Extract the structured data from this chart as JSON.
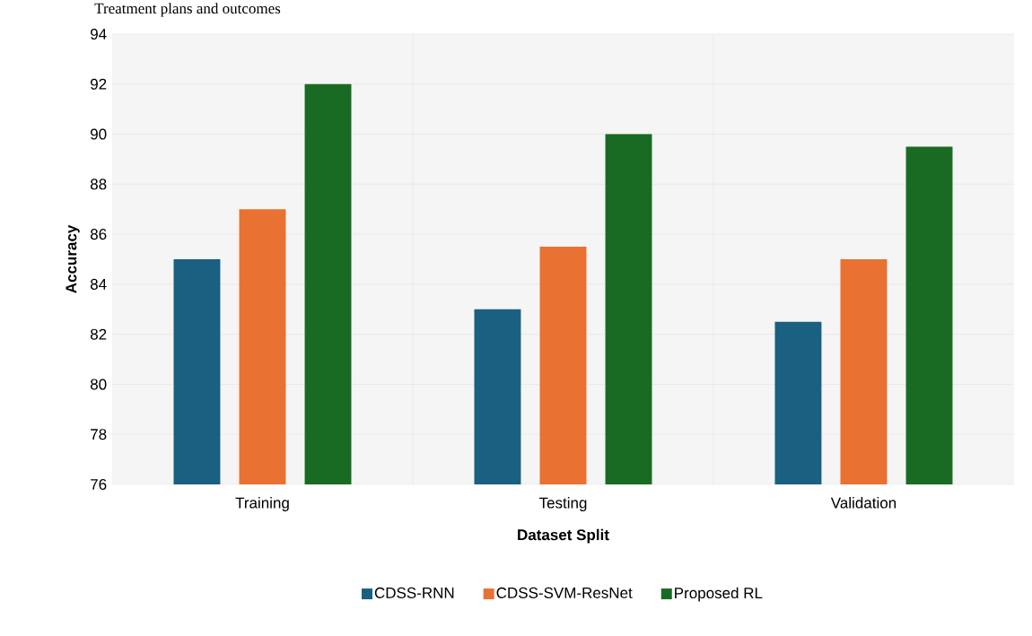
{
  "chart_data": {
    "type": "bar",
    "xlabel": "Dataset Split",
    "ylabel": "Accuracy",
    "annotations": [
      "Treatment plans and outcomes"
    ],
    "categories": [
      "Training",
      "Testing",
      "Validation"
    ],
    "series": [
      {
        "name": "CDSS-RNN",
        "color": "#1a6080",
        "values": [
          85,
          83,
          82.5
        ]
      },
      {
        "name": "CDSS-SVM-ResNet",
        "color": "#e97132",
        "values": [
          87,
          85.5,
          85
        ]
      },
      {
        "name": "Proposed RL",
        "color": "#196b24",
        "values": [
          92,
          90,
          89.5
        ]
      }
    ],
    "ylim": [
      76,
      94
    ],
    "yticks": [
      76,
      78,
      80,
      82,
      84,
      86,
      88,
      90,
      92,
      94
    ],
    "grid": true,
    "legend": "bottom"
  }
}
